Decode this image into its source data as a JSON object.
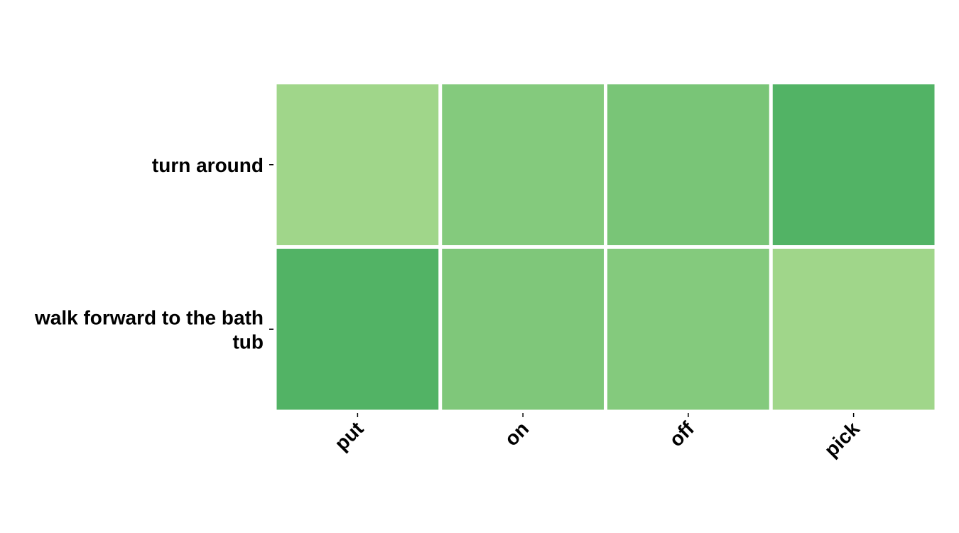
{
  "chart_data": {
    "type": "heatmap",
    "title": "",
    "xlabel": "",
    "ylabel": "",
    "rows": [
      "turn around",
      "walk forward to the bath tub"
    ],
    "columns": [
      "put",
      "on",
      "off",
      "pick"
    ],
    "values": [
      [
        0.21,
        0.26,
        0.28,
        0.35
      ],
      [
        0.35,
        0.27,
        0.26,
        0.21
      ]
    ],
    "color_range": [
      0.21,
      0.35
    ],
    "colormap": [
      "#a0d68a",
      "#52b365"
    ],
    "grid": false,
    "legend": "none"
  }
}
